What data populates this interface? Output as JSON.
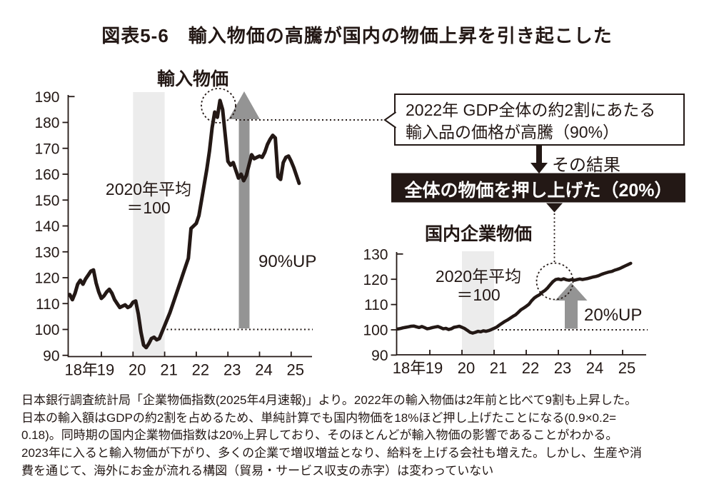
{
  "figure": {
    "title": "図表5-6　輸入物価の高騰が国内の物価上昇を引き起こした"
  },
  "colors": {
    "ink": "#231815",
    "arrow_gray": "#949494",
    "band_gray": "#ececec",
    "black_box_bg": "#231815",
    "black_box_text": "#ffffff"
  },
  "callout": {
    "line1": "2022年 GDP全体の約2割にあたる",
    "line2": "輸入品の価格が高騰（90%）",
    "result_arrow_label": "その結果",
    "black_box_label": "全体の物価を押し上げた（20%）"
  },
  "footer": {
    "lines": [
      "日本銀行調査統計局「企業物価指数(2025年4月速報)」より。2022年の輸入物価は2年前と比べて9割も上昇した。",
      "日本の輸入額はGDPの約2割を占めるため、単純計算でも国内物価を18%ほど押し上げたことになる(0.9×0.2=",
      "0.18)。同時期の国内企業物価指数は20%上昇しており、そのほとんどが輸入物価の影響であることがわかる。",
      "2023年に入ると輸入物価が下がり、多くの企業で増収増益となり、給料を上げる会社も増えた。しかし、生産や消",
      "費を通じて、海外にお金が流れる構図（貿易・サービス収支の赤字）は変わっていない"
    ]
  },
  "chart_data": [
    {
      "id": "import-price",
      "type": "line",
      "title": "輸入物価",
      "note_line1": "2020年平均",
      "note_line2": "＝100",
      "annotation": "90%UP",
      "x_tick_labels": [
        "18年",
        "19",
        "20",
        "21",
        "22",
        "23",
        "24",
        "25"
      ],
      "y_tick_labels": [
        190,
        180,
        170,
        160,
        150,
        140,
        130,
        120,
        110,
        100,
        90
      ],
      "ylim": [
        90,
        190
      ],
      "baseline_value": 100,
      "highlight_band": "2020年(平均=100の基準期間)",
      "x_monthly_start": "2018-01",
      "x_monthly_end": "2025-04",
      "values": [
        113.5,
        111.5,
        114.0,
        117.5,
        119.0,
        117.5,
        119.5,
        121.0,
        122.5,
        123.0,
        118.0,
        114.5,
        112.0,
        113.0,
        114.5,
        115.5,
        114.0,
        111.5,
        110.0,
        108.5,
        109.0,
        109.5,
        108.5,
        109.0,
        110.5,
        111.0,
        106.0,
        99.0,
        94.0,
        93.0,
        94.5,
        96.5,
        97.0,
        96.0,
        96.5,
        99.0,
        101.5,
        104.0,
        106.5,
        109.5,
        112.5,
        115.5,
        118.5,
        121.5,
        124.5,
        127.5,
        139.0,
        140.0,
        141.0,
        144.0,
        150.0,
        156.0,
        162.0,
        169.0,
        178.0,
        184.0,
        182.0,
        188.5,
        185.0,
        175.0,
        165.0,
        163.5,
        164.5,
        161.5,
        158.5,
        160.0,
        157.5,
        159.5,
        163.5,
        167.5,
        166.0,
        166.5,
        167.0,
        166.5,
        168.5,
        171.5,
        173.5,
        175.0,
        174.0,
        159.0,
        158.0,
        164.5,
        166.5,
        167.0,
        165.0,
        162.5,
        159.5,
        156.5
      ]
    },
    {
      "id": "domestic-corporate-price",
      "type": "line",
      "title": "国内企業物価",
      "note_line1": "2020年平均",
      "note_line2": "＝100",
      "annotation": "20%UP",
      "x_tick_labels": [
        "18年",
        "19",
        "20",
        "21",
        "22",
        "23",
        "24",
        "25"
      ],
      "y_tick_labels": [
        130,
        120,
        110,
        100,
        90
      ],
      "ylim": [
        90,
        130
      ],
      "baseline_value": 100,
      "highlight_band": "2020年(平均=100の基準期間)",
      "x_monthly_start": "2018-01",
      "x_monthly_end": "2025-04",
      "values": [
        100.3,
        100.5,
        100.8,
        101.0,
        101.2,
        101.4,
        101.5,
        101.2,
        100.9,
        101.3,
        100.9,
        100.4,
        100.6,
        100.9,
        101.1,
        101.3,
        100.9,
        100.4,
        100.6,
        100.1,
        100.4,
        101.0,
        101.2,
        101.4,
        101.0,
        100.5,
        99.8,
        99.0,
        98.7,
        99.0,
        99.4,
        99.2,
        99.6,
        99.4,
        99.7,
        100.1,
        100.6,
        101.1,
        101.9,
        102.6,
        103.3,
        103.9,
        104.6,
        105.3,
        105.9,
        106.9,
        107.9,
        108.6,
        109.3,
        110.1,
        111.5,
        112.6,
        113.3,
        113.9,
        114.9,
        115.6,
        116.6,
        117.9,
        119.1,
        119.9,
        120.1,
        119.8,
        120.2,
        119.8,
        119.6,
        119.9,
        119.6,
        119.9,
        120.1,
        119.9,
        120.1,
        120.3,
        120.6,
        120.9,
        121.1,
        121.4,
        121.9,
        122.3,
        122.6,
        122.9,
        123.1,
        123.6,
        123.9,
        124.3,
        124.8,
        125.3,
        125.8,
        126.3
      ]
    }
  ]
}
